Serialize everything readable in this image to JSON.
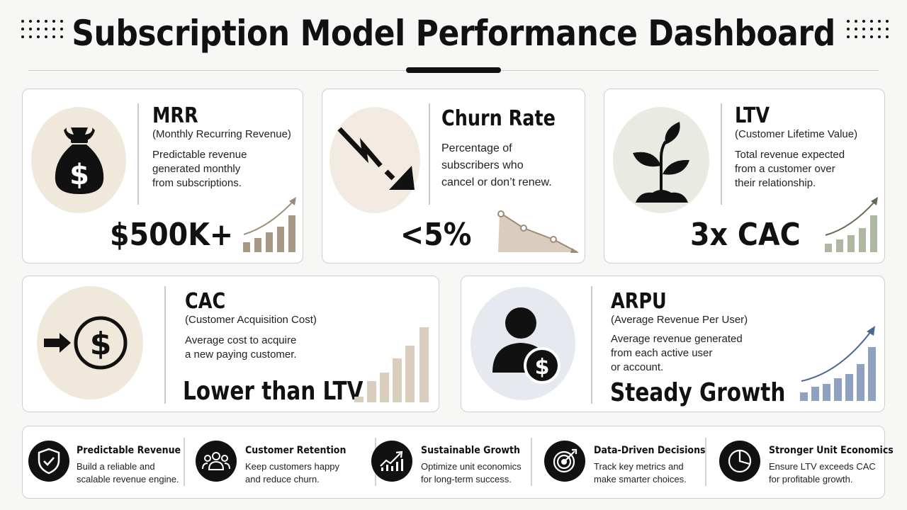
{
  "header": {
    "title": "Subscription Model Performance Dashboard"
  },
  "colors": {
    "bronze": "#9c8b77",
    "bronze_light": "#d9cdbd",
    "sage": "#aeb8a0",
    "sage_dark": "#5d6b55",
    "slate_blue": "#8ea2bf",
    "slate_blue_dark": "#4a6896",
    "beige_circle": "#f1e8dc",
    "sage_circle": "#e9ebe2",
    "blue_circle": "#e6eaf0"
  },
  "cards": {
    "mrr": {
      "name": "MRR",
      "subtitle": "(Monthly Recurring Revenue)",
      "description": "Predictable revenue\ngenerated monthly\nfrom subscriptions.",
      "value": "$500K+",
      "icon": "money-bag-icon"
    },
    "churn": {
      "name": "Churn Rate",
      "description": "Percentage of\nsubscribers who\ncancel or don’t renew.",
      "value": "<5%",
      "icon": "downtrend-arrow-icon"
    },
    "ltv": {
      "name": "LTV",
      "subtitle": "(Customer Lifetime Value)",
      "description": "Total revenue expected\nfrom a customer over\ntheir relationship.",
      "value": "3x CAC",
      "icon": "sprout-icon"
    },
    "cac": {
      "name": "CAC",
      "subtitle": "(Customer Acquisition Cost)",
      "description": "Average cost to acquire\na new paying customer.",
      "value": "Lower than LTV",
      "icon": "arrow-dollar-icon"
    },
    "arpu": {
      "name": "ARPU",
      "subtitle": "(Average Revenue Per User)",
      "description": "Average revenue generated\nfrom each active user\nor account.",
      "value": "Steady Growth",
      "icon": "user-dollar-icon"
    }
  },
  "benefits": [
    {
      "title": "Predictable Revenue",
      "description": "Build a reliable and\nscalable revenue engine.",
      "icon": "shield-check-icon"
    },
    {
      "title": "Customer Retention",
      "description": "Keep customers happy\nand reduce churn.",
      "icon": "users-group-icon"
    },
    {
      "title": "Sustainable Growth",
      "description": "Optimize unit economics\nfor long-term success.",
      "icon": "growth-chart-icon"
    },
    {
      "title": "Data-Driven Decisions",
      "description": "Track key metrics and\nmake smarter choices.",
      "icon": "target-icon"
    },
    {
      "title": "Stronger Unit Economics",
      "description": "Ensure LTV exceeds CAC\nfor profitable growth.",
      "icon": "pie-chart-icon"
    }
  ]
}
